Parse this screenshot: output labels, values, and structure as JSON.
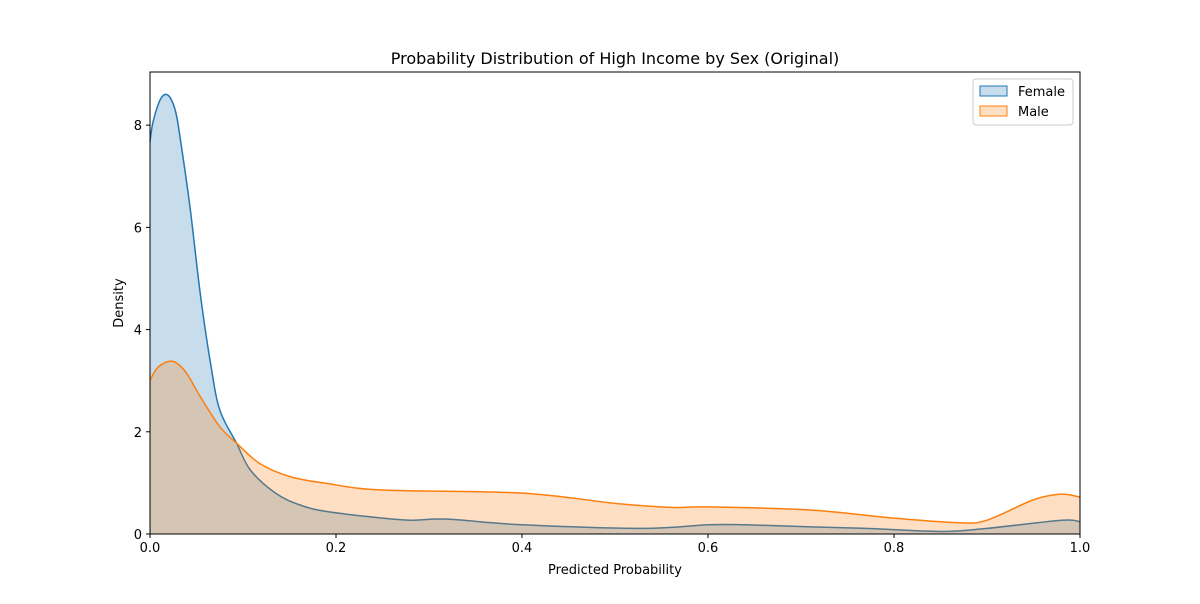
{
  "chart_data": {
    "type": "area",
    "title": "Probability Distribution of High Income by Sex (Original)",
    "xlabel": "Predicted Probability",
    "ylabel": "Density",
    "xlim": [
      0,
      1
    ],
    "ylim": [
      0,
      9.04
    ],
    "xticks": [
      "0.0",
      "0.2",
      "0.4",
      "0.6",
      "0.8",
      "1.0"
    ],
    "yticks": [
      "0",
      "2",
      "4",
      "6",
      "8"
    ],
    "grid": false,
    "legend_position": "top-right",
    "series": [
      {
        "name": "Female",
        "color": "#1f77b4",
        "x": [
          0,
          0.003,
          0.01,
          0.016,
          0.022,
          0.028,
          0.033,
          0.043,
          0.054,
          0.065,
          0.075,
          0.093,
          0.108,
          0.135,
          0.161,
          0.19,
          0.25,
          0.28,
          0.32,
          0.4,
          0.53,
          0.6,
          0.64,
          0.71,
          0.77,
          0.85,
          0.9,
          0.98,
          1.0
        ],
        "y": [
          7.68,
          8.04,
          8.46,
          8.6,
          8.53,
          8.23,
          7.68,
          6.4,
          4.71,
          3.35,
          2.43,
          1.78,
          1.25,
          0.8,
          0.57,
          0.44,
          0.31,
          0.27,
          0.29,
          0.18,
          0.11,
          0.18,
          0.18,
          0.14,
          0.11,
          0.05,
          0.11,
          0.27,
          0.24
        ]
      },
      {
        "name": "Male",
        "color": "#ff7f0e",
        "x": [
          0,
          0.009,
          0.024,
          0.038,
          0.054,
          0.075,
          0.093,
          0.118,
          0.151,
          0.19,
          0.25,
          0.4,
          0.5,
          0.56,
          0.6,
          0.71,
          0.8,
          0.87,
          0.9,
          0.95,
          0.98,
          1.0
        ],
        "y": [
          3.01,
          3.27,
          3.38,
          3.18,
          2.69,
          2.1,
          1.78,
          1.38,
          1.12,
          0.99,
          0.86,
          0.8,
          0.6,
          0.52,
          0.53,
          0.47,
          0.31,
          0.22,
          0.27,
          0.67,
          0.78,
          0.72
        ]
      }
    ]
  }
}
